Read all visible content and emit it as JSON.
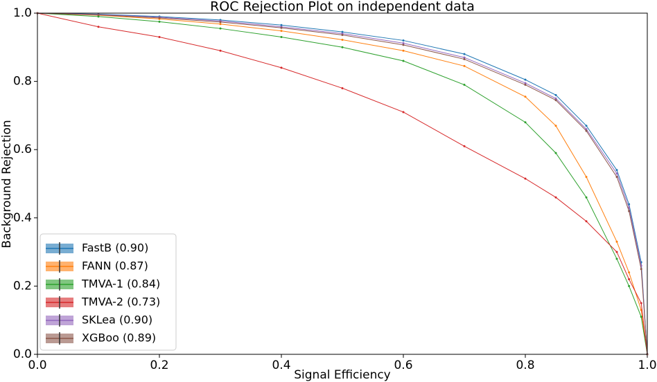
{
  "chart_data": {
    "type": "line",
    "title": "ROC Rejection Plot on independent data",
    "x_label": "Signal Efficiency",
    "y_label": "Background Rejection",
    "x": [
      0,
      0.1,
      0.2,
      0.3,
      0.4,
      0.5,
      0.6,
      0.7,
      0.8,
      0.85,
      0.9,
      0.95,
      0.97,
      0.99,
      1.0
    ],
    "series": [
      {
        "name": "FastB (0.90)",
        "color": "#1f77b4",
        "values": [
          1,
          0.997,
          0.99,
          0.98,
          0.965,
          0.945,
          0.92,
          0.88,
          0.805,
          0.76,
          0.67,
          0.54,
          0.44,
          0.27,
          0
        ]
      },
      {
        "name": "FANN (0.87)",
        "color": "#ff7f0e",
        "values": [
          1,
          0.994,
          0.983,
          0.968,
          0.948,
          0.922,
          0.89,
          0.845,
          0.755,
          0.67,
          0.52,
          0.33,
          0.24,
          0.13,
          0
        ]
      },
      {
        "name": "TMVA-1 (0.84)",
        "color": "#2ca02c",
        "values": [
          1,
          0.99,
          0.975,
          0.955,
          0.93,
          0.9,
          0.86,
          0.79,
          0.68,
          0.59,
          0.46,
          0.28,
          0.2,
          0.11,
          0
        ]
      },
      {
        "name": "TMVA-2 (0.73)",
        "color": "#d62728",
        "values": [
          1,
          0.96,
          0.93,
          0.89,
          0.84,
          0.78,
          0.71,
          0.61,
          0.515,
          0.46,
          0.39,
          0.3,
          0.22,
          0.15,
          0
        ]
      },
      {
        "name": "SKLea (0.90)",
        "color": "#9467bd",
        "values": [
          1,
          0.996,
          0.988,
          0.977,
          0.96,
          0.94,
          0.912,
          0.87,
          0.795,
          0.75,
          0.66,
          0.53,
          0.43,
          0.26,
          0
        ]
      },
      {
        "name": "XGBoo (0.89)",
        "color": "#8c564b",
        "values": [
          1,
          0.995,
          0.986,
          0.974,
          0.957,
          0.936,
          0.907,
          0.865,
          0.79,
          0.745,
          0.655,
          0.52,
          0.42,
          0.25,
          0
        ]
      }
    ],
    "xlim": [
      0,
      1
    ],
    "ylim": [
      0,
      1
    ],
    "xticks": [
      {
        "value": 0,
        "label": "0.0"
      },
      {
        "value": 0.2,
        "label": "0.2"
      },
      {
        "value": 0.4,
        "label": "0.4"
      },
      {
        "value": 0.6,
        "label": "0.6"
      },
      {
        "value": 0.8,
        "label": "0.8"
      },
      {
        "value": 1,
        "label": "1.0"
      }
    ],
    "yticks": [
      {
        "value": 0,
        "label": "0.0"
      },
      {
        "value": 0.2,
        "label": "0.2"
      },
      {
        "value": 0.4,
        "label": "0.4"
      },
      {
        "value": 0.6,
        "label": "0.6"
      },
      {
        "value": 0.8,
        "label": "0.8"
      },
      {
        "value": 1,
        "label": "1.0"
      }
    ],
    "legend": "lower left"
  }
}
